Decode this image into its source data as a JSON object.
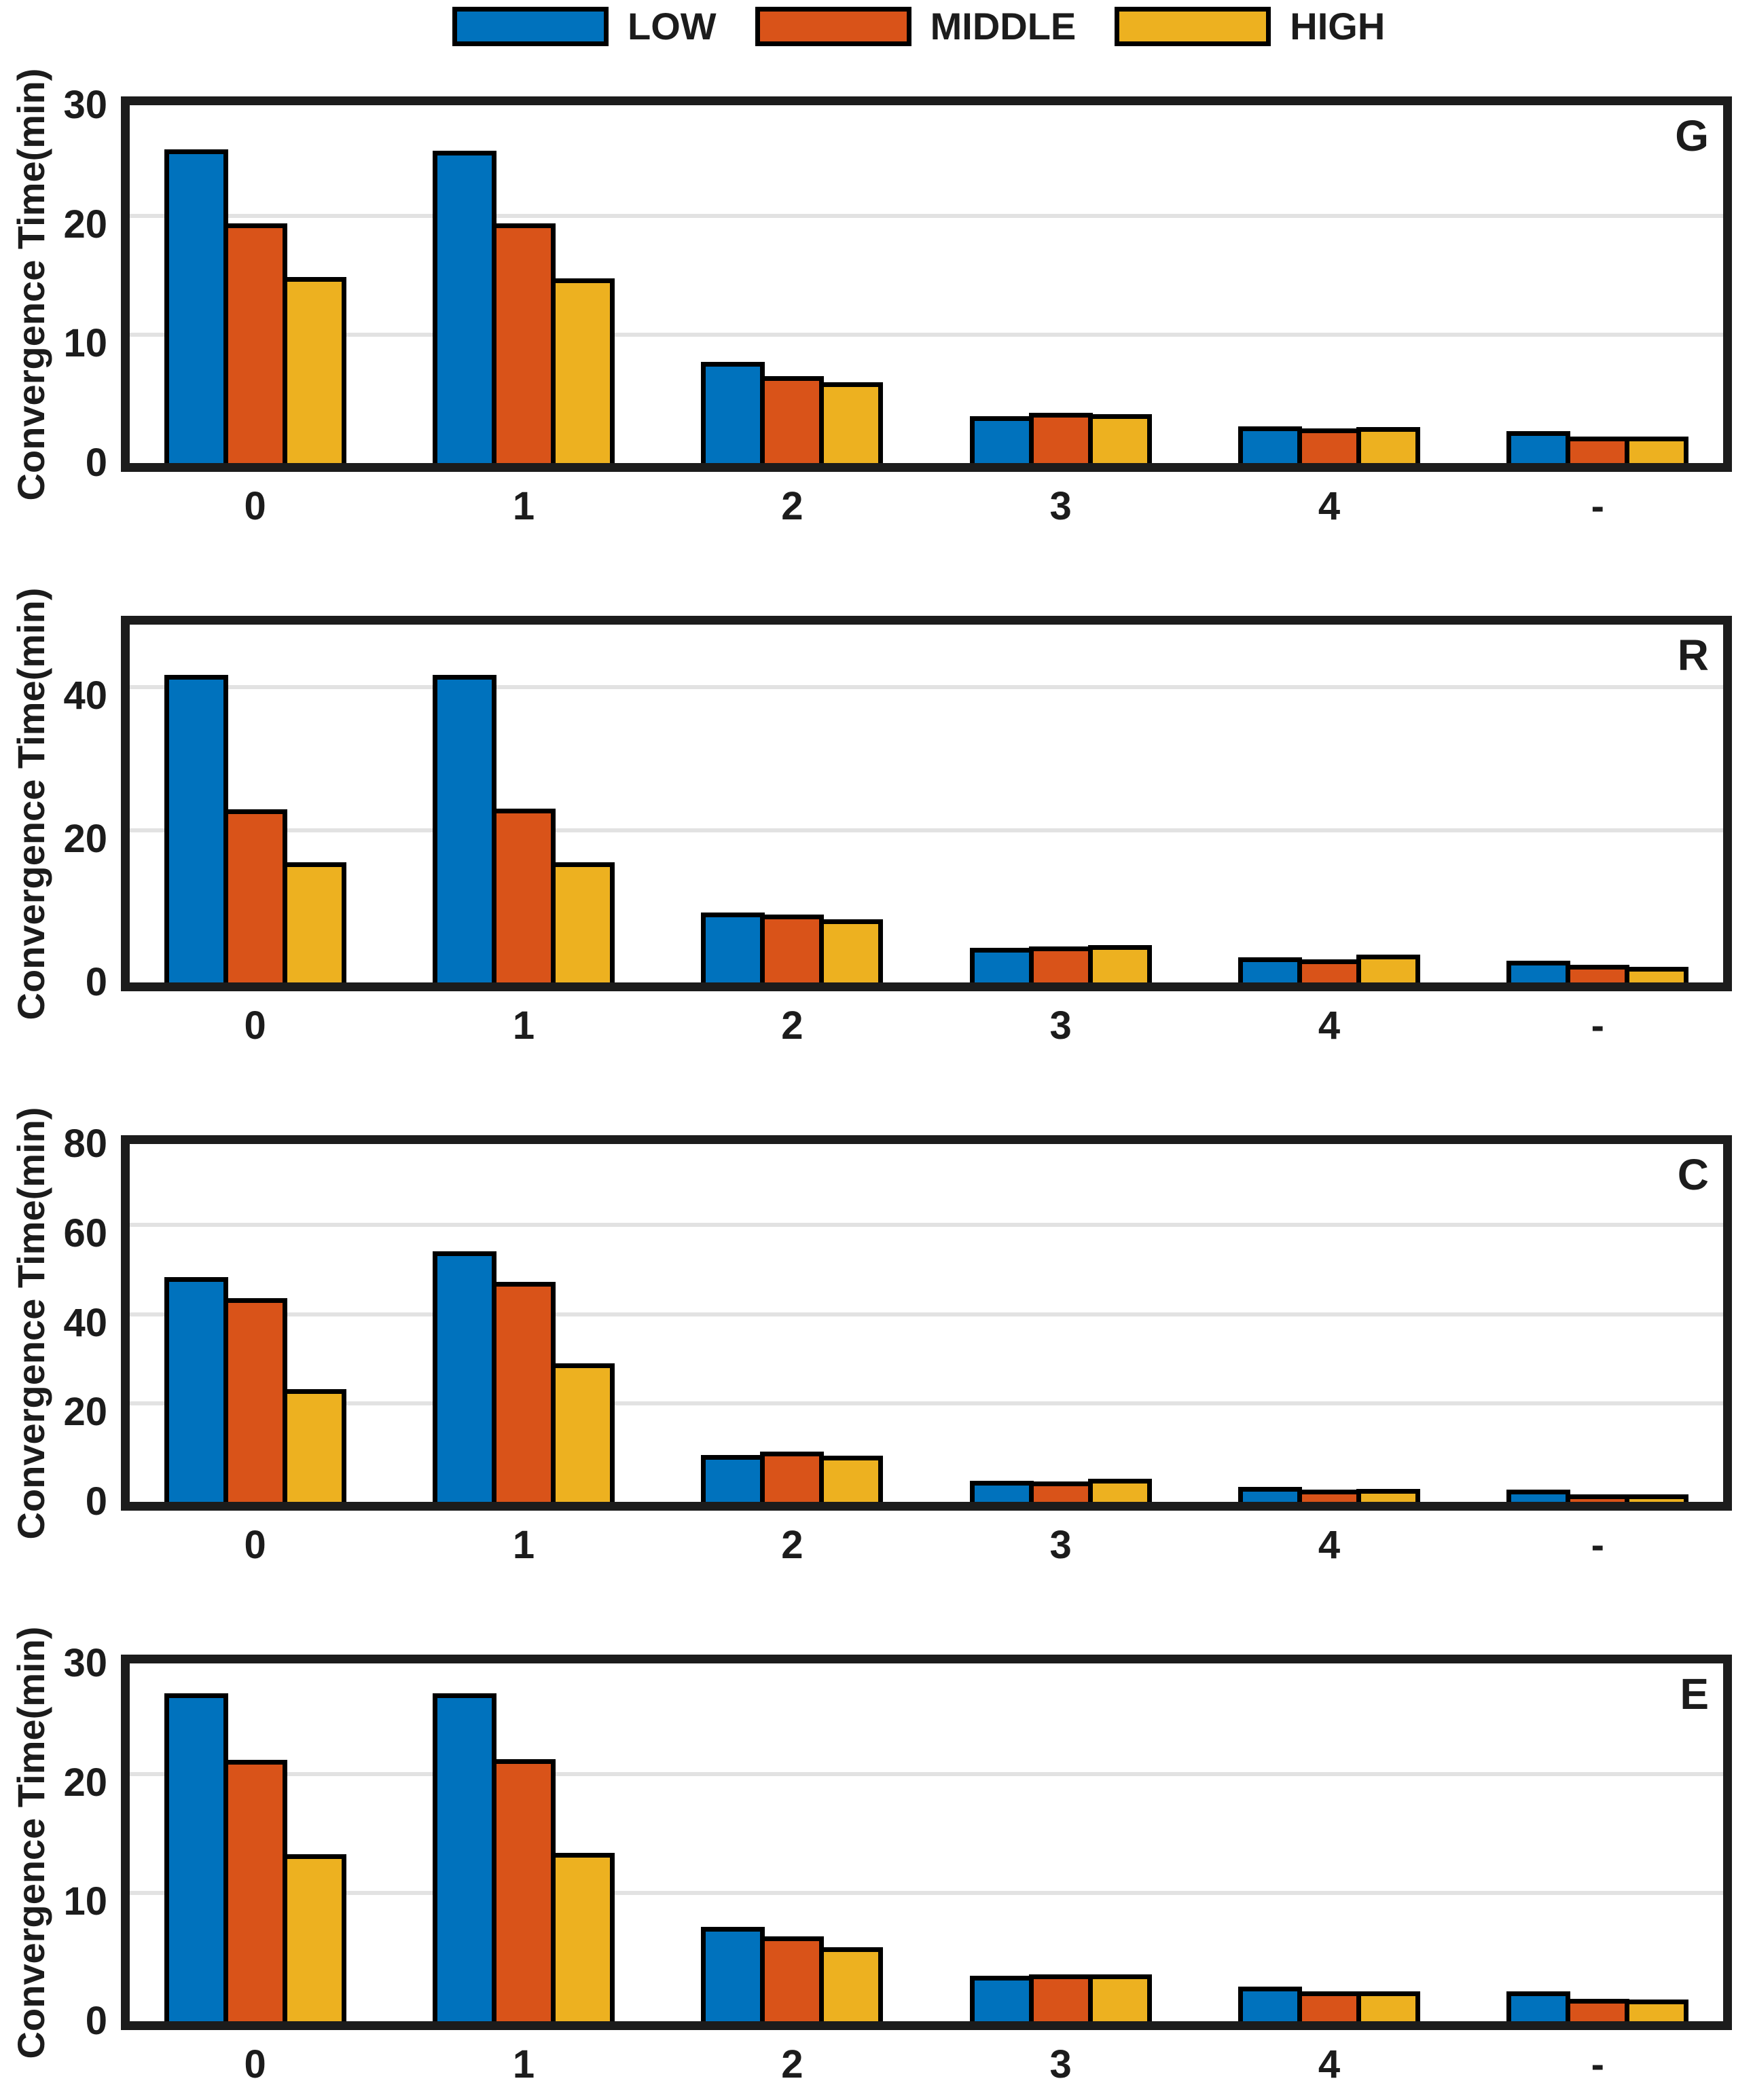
{
  "ylabel": "Convergence Time(min)",
  "categories": [
    "0",
    "1",
    "2",
    "3",
    "4",
    "-"
  ],
  "colors": {
    "low": "#0072BD",
    "middle": "#D95319",
    "high": "#EDB120",
    "axis": "#1c1c1c",
    "grid": "#e2e2e2"
  },
  "legend": [
    {
      "label": "LOW",
      "color": "#0072BD"
    },
    {
      "label": "MIDDLE",
      "color": "#D95319"
    },
    {
      "label": "HIGH",
      "color": "#EDB120"
    }
  ],
  "chart_data": [
    {
      "type": "bar",
      "panel_label": "G",
      "categories": [
        "0",
        "1",
        "2",
        "3",
        "4",
        "-"
      ],
      "xlabel": "",
      "ylabel": "Convergence Time(min)",
      "ylim": [
        0,
        30
      ],
      "yticks": [
        0,
        10,
        20,
        30
      ],
      "grid": "horizontal",
      "legend_position": "top",
      "series": [
        {
          "name": "LOW",
          "color": "#0072BD",
          "values": [
            26.3,
            26.2,
            8.5,
            3.9,
            3.1,
            2.7
          ]
        },
        {
          "name": "MIDDLE",
          "color": "#D95319",
          "values": [
            20.1,
            20.1,
            7.3,
            4.2,
            2.9,
            2.2
          ]
        },
        {
          "name": "HIGH",
          "color": "#EDB120",
          "values": [
            15.6,
            15.5,
            6.8,
            4.1,
            3.0,
            2.2
          ]
        }
      ]
    },
    {
      "type": "bar",
      "panel_label": "R",
      "categories": [
        "0",
        "1",
        "2",
        "3",
        "4",
        "-"
      ],
      "xlabel": "",
      "ylabel": "Convergence Time(min)",
      "ylim": [
        0,
        50
      ],
      "yticks": [
        0,
        20,
        40
      ],
      "grid": "horizontal",
      "legend_position": "top",
      "series": [
        {
          "name": "LOW",
          "color": "#0072BD",
          "values": [
            43.0,
            43.0,
            9.8,
            4.8,
            3.5,
            3.0
          ]
        },
        {
          "name": "MIDDLE",
          "color": "#D95319",
          "values": [
            24.2,
            24.3,
            9.5,
            5.0,
            3.2,
            2.5
          ]
        },
        {
          "name": "HIGH",
          "color": "#EDB120",
          "values": [
            16.8,
            16.8,
            8.8,
            5.2,
            3.9,
            2.2
          ]
        }
      ]
    },
    {
      "type": "bar",
      "panel_label": "C",
      "categories": [
        "0",
        "1",
        "2",
        "3",
        "4",
        "-"
      ],
      "xlabel": "",
      "ylabel": "Convergence Time(min)",
      "ylim": [
        0,
        80
      ],
      "yticks": [
        0,
        20,
        40,
        60,
        80
      ],
      "grid": "horizontal",
      "legend_position": "top",
      "series": [
        {
          "name": "LOW",
          "color": "#0072BD",
          "values": [
            50.3,
            56.0,
            10.5,
            4.7,
            3.4,
            2.8
          ]
        },
        {
          "name": "MIDDLE",
          "color": "#D95319",
          "values": [
            45.5,
            49.2,
            11.3,
            4.6,
            2.7,
            1.6
          ]
        },
        {
          "name": "HIGH",
          "color": "#EDB120",
          "values": [
            25.2,
            31.0,
            10.3,
            5.1,
            2.9,
            1.7
          ]
        }
      ]
    },
    {
      "type": "bar",
      "panel_label": "E",
      "categories": [
        "0",
        "1",
        "2",
        "3",
        "4",
        "-"
      ],
      "xlabel": "",
      "ylabel": "Convergence Time(min)",
      "ylim": [
        0,
        30
      ],
      "yticks": [
        0,
        10,
        20,
        30
      ],
      "grid": "horizontal",
      "legend_position": "top",
      "series": [
        {
          "name": "LOW",
          "color": "#0072BD",
          "values": [
            27.5,
            27.5,
            7.9,
            3.8,
            2.9,
            2.5
          ]
        },
        {
          "name": "MIDDLE",
          "color": "#D95319",
          "values": [
            21.9,
            22.0,
            7.1,
            3.9,
            2.5,
            1.9
          ]
        },
        {
          "name": "HIGH",
          "color": "#EDB120",
          "values": [
            14.0,
            14.1,
            6.2,
            3.9,
            2.5,
            1.8
          ]
        }
      ]
    }
  ]
}
